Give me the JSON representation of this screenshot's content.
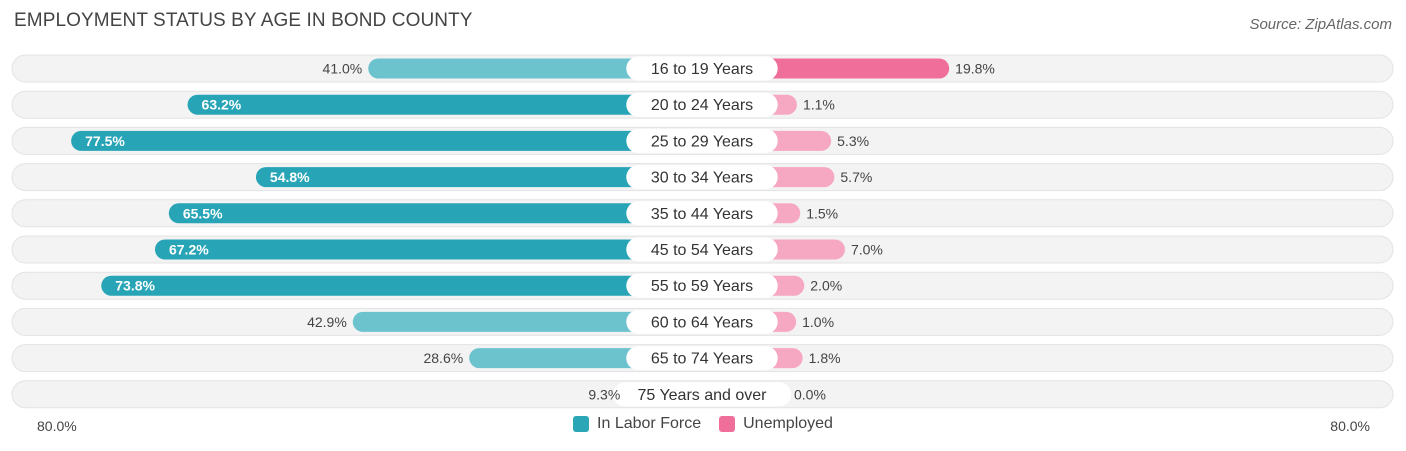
{
  "chart_data": {
    "type": "bar",
    "title": "EMPLOYMENT STATUS BY AGE IN BOND COUNTY",
    "source": "Source: ZipAtlas.com",
    "categories": [
      "16 to 19 Years",
      "20 to 24 Years",
      "25 to 29 Years",
      "30 to 34 Years",
      "35 to 44 Years",
      "45 to 54 Years",
      "55 to 59 Years",
      "60 to 64 Years",
      "65 to 74 Years",
      "75 Years and over"
    ],
    "series": [
      {
        "name": "In Labor Force",
        "color": "#2ba6b7",
        "values": [
          41.0,
          63.2,
          77.5,
          54.8,
          65.5,
          67.2,
          73.8,
          42.9,
          28.6,
          9.3
        ],
        "labels": [
          "41.0%",
          "63.2%",
          "77.5%",
          "54.8%",
          "65.5%",
          "67.2%",
          "73.8%",
          "42.9%",
          "28.6%",
          "9.3%"
        ]
      },
      {
        "name": "Unemployed",
        "color": "#f06f9a",
        "values": [
          19.8,
          1.1,
          5.3,
          5.7,
          1.5,
          7.0,
          2.0,
          1.0,
          1.8,
          0.0
        ],
        "labels": [
          "19.8%",
          "1.1%",
          "5.3%",
          "5.7%",
          "1.5%",
          "7.0%",
          "2.0%",
          "1.0%",
          "1.8%",
          "0.0%"
        ]
      }
    ],
    "xlim": [
      0,
      80
    ],
    "axis_left_label": "80.0%",
    "axis_right_label": "80.0%",
    "legend_position": "bottom-center"
  }
}
